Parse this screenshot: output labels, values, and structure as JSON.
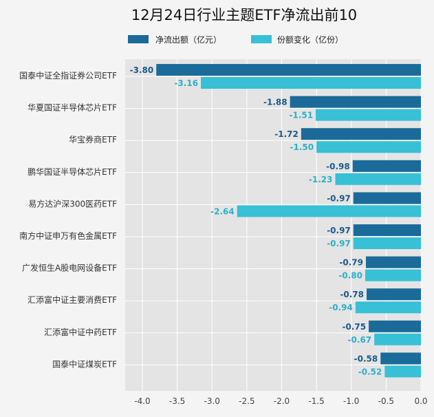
{
  "chart_data": {
    "type": "bar",
    "orientation": "horizontal",
    "title": "12月24日行业主题ETF净流出前10",
    "categories": [
      "国泰中证全指证券公司ETF",
      "华夏国证半导体芯片ETF",
      "华宝券商ETF",
      "鹏华国证半导体芯片ETF",
      "易方达沪深300医药ETF",
      "南方中证申万有色金属ETF",
      "广发恒生A股电网设备ETF",
      "汇添富中证主要消费ETF",
      "汇添富中证中药ETF",
      "国泰中证煤炭ETF"
    ],
    "series": [
      {
        "name": "净流出额（亿元）",
        "color": "#1a6b9a",
        "label_color": "#1a5a8a",
        "values": [
          -3.8,
          -1.88,
          -1.72,
          -0.98,
          -0.97,
          -0.97,
          -0.79,
          -0.78,
          -0.75,
          -0.58
        ],
        "labels": [
          "-3.80",
          "-1.88",
          "-1.72",
          "-0.98",
          "-0.97",
          "-0.97",
          "-0.79",
          "-0.78",
          "-0.75",
          "-0.58"
        ]
      },
      {
        "name": "份额变化（亿份）",
        "color": "#37c0d6",
        "label_color": "#2bb0c8",
        "values": [
          -3.16,
          -1.51,
          -1.5,
          -1.23,
          -2.64,
          -0.97,
          -0.8,
          -0.94,
          -0.67,
          -0.52
        ],
        "labels": [
          "-3.16",
          "-1.51",
          "-1.50",
          "-1.23",
          "-2.64",
          "-0.97",
          "-0.80",
          "-0.94",
          "-0.67",
          "-0.52"
        ]
      }
    ],
    "xlim": [
      -4.3,
      0.0
    ],
    "xticks": [
      -4.0,
      -3.5,
      -3.0,
      -2.5,
      -2.0,
      -1.5,
      -1.0,
      -0.5,
      0.0
    ],
    "xtick_labels": [
      "-4.0",
      "-3.5",
      "-3.0",
      "-2.5",
      "-2.0",
      "-1.5",
      "-1.0",
      "-0.5",
      "0.0"
    ],
    "grid": true,
    "legend_position": "top"
  }
}
